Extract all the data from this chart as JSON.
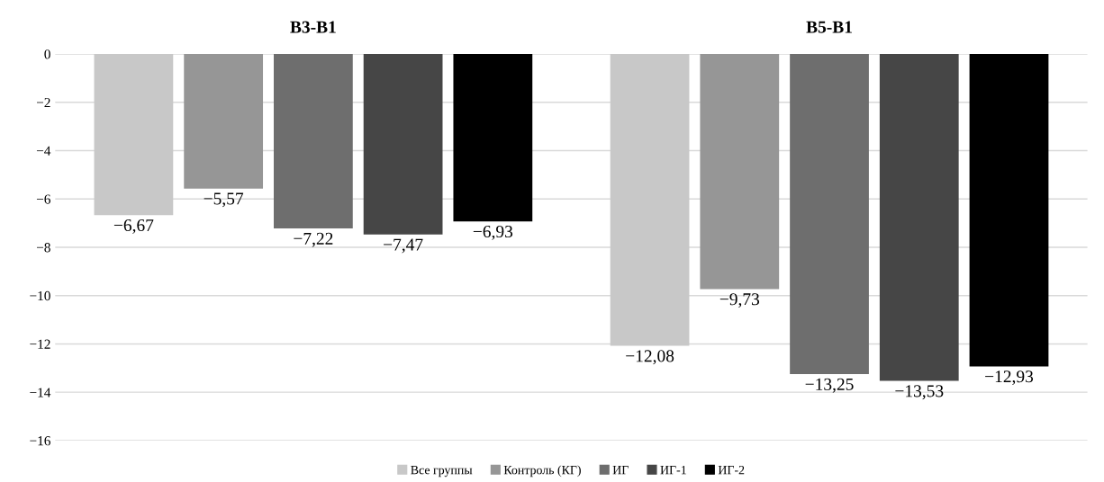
{
  "chart_data": {
    "type": "bar",
    "categories": [
      "В3-В1",
      "В5-В1"
    ],
    "series": [
      {
        "name": "Все группы",
        "color": "#c8c8c8",
        "values": [
          -6.67,
          -12.08
        ],
        "value_labels": [
          "−6,67",
          "−12,08"
        ]
      },
      {
        "name": "Контроль (КГ)",
        "color": "#969696",
        "values": [
          -5.57,
          -9.73
        ],
        "value_labels": [
          "−5,57",
          "−9,73"
        ]
      },
      {
        "name": "ИГ",
        "color": "#6e6e6e",
        "values": [
          -7.22,
          -13.25
        ],
        "value_labels": [
          "−7,22",
          "−13,25"
        ]
      },
      {
        "name": "ИГ-1",
        "color": "#464646",
        "values": [
          -7.47,
          -13.53
        ],
        "value_labels": [
          "−7,47",
          "−13,53"
        ]
      },
      {
        "name": "ИГ-2",
        "color": "#000000",
        "values": [
          -6.93,
          -12.93
        ],
        "value_labels": [
          "−6,93",
          "−12,93"
        ]
      }
    ],
    "ylim": [
      -16,
      0
    ],
    "yticks": [
      0,
      {
        "value": -2,
        "label": "−2"
      },
      {
        "value": -4,
        "label": "−4"
      },
      {
        "value": -6,
        "label": "−6"
      },
      {
        "value": -8,
        "label": "−8"
      },
      {
        "value": -10,
        "label": "−10"
      },
      {
        "value": -12,
        "label": "−12"
      },
      {
        "value": -14,
        "label": "−14"
      },
      {
        "value": -16,
        "label": "−16"
      }
    ],
    "grid": "y",
    "legend": "bottom"
  }
}
